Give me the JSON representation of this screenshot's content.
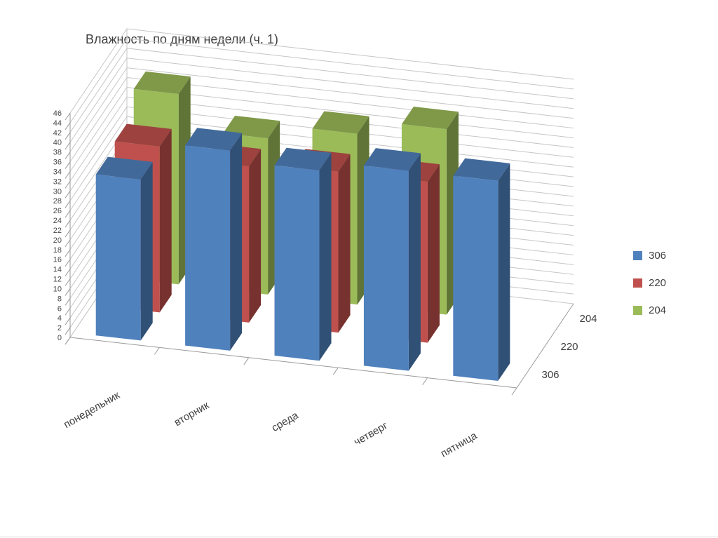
{
  "page": {
    "background": "#ffffff"
  },
  "chart_data": {
    "type": "bar",
    "subtype": "3d-column",
    "title": "Влажность по дням недели (ч. 1)",
    "categories": [
      "понедельник",
      "вторник",
      "среда",
      "четверг",
      "пятница"
    ],
    "series": [
      {
        "name": "306",
        "color": "#4F81BD",
        "values": [
          33,
          41,
          39,
          41,
          41
        ]
      },
      {
        "name": "220",
        "color": "#C0504D",
        "values": [
          34,
          32,
          33,
          33,
          null
        ]
      },
      {
        "name": "204",
        "color": "#9BBB59",
        "values": [
          39,
          32,
          35,
          38,
          null
        ]
      }
    ],
    "value_axis": {
      "min": 0,
      "max": 46,
      "step": 2
    },
    "depth_axis_labels": [
      "306",
      "220",
      "204"
    ],
    "legend_position": "right",
    "grid": true,
    "colors": {
      "gridline": "#C6C6C6",
      "axis": "#9A9A9A",
      "text": "#3f3f3f"
    }
  }
}
